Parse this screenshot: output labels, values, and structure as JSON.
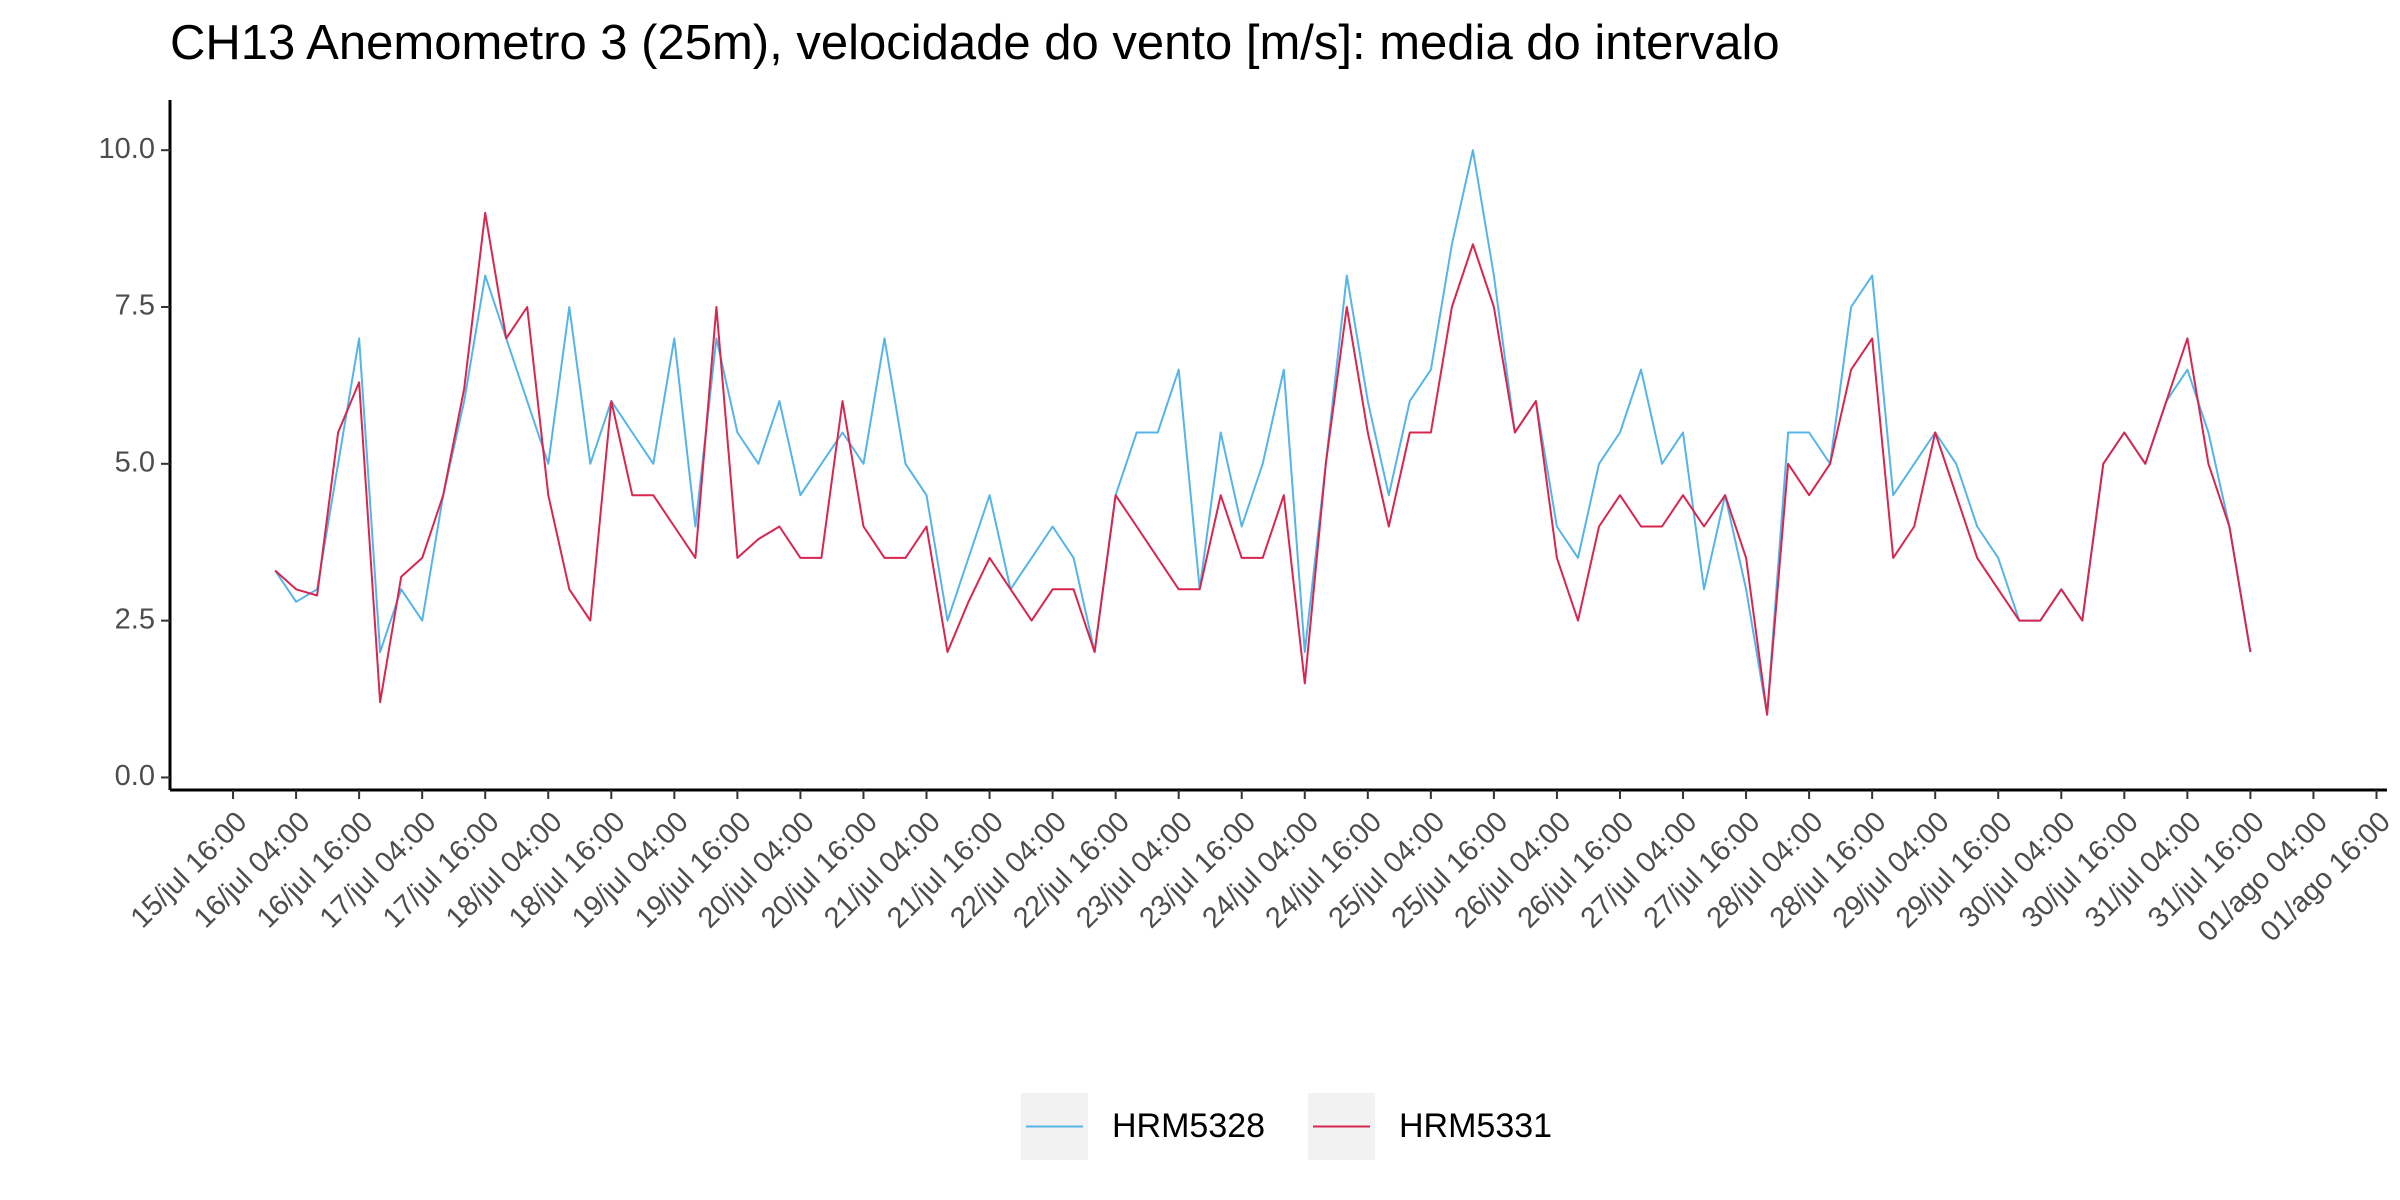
{
  "chart_data": {
    "type": "line",
    "title": "CH13 Anemometro 3 (25m), velocidade do vento [m/s]: media do intervalo",
    "x": [
      "16/jul 00:00",
      "16/jul 04:00",
      "16/jul 08:00",
      "16/jul 12:00",
      "16/jul 16:00",
      "16/jul 20:00",
      "17/jul 00:00",
      "17/jul 04:00",
      "17/jul 08:00",
      "17/jul 12:00",
      "17/jul 16:00",
      "17/jul 20:00",
      "18/jul 00:00",
      "18/jul 04:00",
      "18/jul 08:00",
      "18/jul 12:00",
      "18/jul 16:00",
      "18/jul 20:00",
      "19/jul 00:00",
      "19/jul 04:00",
      "19/jul 08:00",
      "19/jul 12:00",
      "19/jul 16:00",
      "19/jul 20:00",
      "20/jul 00:00",
      "20/jul 04:00",
      "20/jul 08:00",
      "20/jul 12:00",
      "20/jul 16:00",
      "20/jul 20:00",
      "21/jul 00:00",
      "21/jul 04:00",
      "21/jul 08:00",
      "21/jul 12:00",
      "21/jul 16:00",
      "21/jul 20:00",
      "22/jul 00:00",
      "22/jul 04:00",
      "22/jul 08:00",
      "22/jul 12:00",
      "22/jul 16:00",
      "22/jul 20:00",
      "23/jul 00:00",
      "23/jul 04:00",
      "23/jul 08:00",
      "23/jul 12:00",
      "23/jul 16:00",
      "23/jul 20:00",
      "24/jul 00:00",
      "24/jul 04:00",
      "24/jul 08:00",
      "24/jul 12:00",
      "24/jul 16:00",
      "24/jul 20:00",
      "25/jul 00:00",
      "25/jul 04:00",
      "25/jul 08:00",
      "25/jul 12:00",
      "25/jul 16:00",
      "25/jul 20:00",
      "26/jul 00:00",
      "26/jul 04:00",
      "26/jul 08:00",
      "26/jul 12:00",
      "26/jul 16:00",
      "26/jul 20:00",
      "27/jul 00:00",
      "27/jul 04:00",
      "27/jul 08:00",
      "27/jul 12:00",
      "27/jul 16:00",
      "27/jul 20:00",
      "28/jul 00:00",
      "28/jul 04:00",
      "28/jul 08:00",
      "28/jul 12:00",
      "28/jul 16:00",
      "28/jul 20:00",
      "29/jul 00:00",
      "29/jul 04:00",
      "29/jul 08:00",
      "29/jul 12:00",
      "29/jul 16:00",
      "29/jul 20:00",
      "30/jul 00:00",
      "30/jul 04:00",
      "30/jul 08:00",
      "30/jul 12:00",
      "30/jul 16:00",
      "30/jul 20:00",
      "31/jul 00:00",
      "31/jul 04:00",
      "31/jul 08:00",
      "31/jul 12:00",
      "31/jul 16:00"
    ],
    "series": [
      {
        "name": "HRM5328",
        "color": "#56b4e9",
        "values": [
          3.3,
          2.8,
          3.0,
          5.0,
          7.0,
          2.0,
          3.0,
          2.5,
          4.5,
          6.0,
          8.0,
          7.0,
          6.0,
          5.0,
          7.5,
          5.0,
          6.0,
          5.5,
          5.0,
          7.0,
          4.0,
          7.0,
          5.5,
          5.0,
          6.0,
          4.5,
          5.0,
          5.5,
          5.0,
          7.0,
          5.0,
          4.5,
          2.5,
          3.5,
          4.5,
          3.0,
          3.5,
          4.0,
          3.5,
          2.0,
          4.5,
          5.5,
          5.5,
          6.5,
          3.0,
          5.5,
          4.0,
          5.0,
          6.5,
          2.0,
          5.0,
          8.0,
          6.0,
          4.5,
          6.0,
          6.5,
          8.5,
          10.0,
          8.0,
          5.5,
          6.0,
          4.0,
          3.5,
          5.0,
          5.5,
          6.5,
          5.0,
          5.5,
          3.0,
          4.5,
          3.0,
          1.0,
          5.5,
          5.5,
          5.0,
          7.5,
          8.0,
          4.5,
          5.0,
          5.5,
          5.0,
          4.0,
          3.5,
          2.5,
          2.5,
          3.0,
          2.5,
          5.0,
          5.5,
          5.0,
          6.0,
          6.5,
          5.5,
          4.0,
          2.0
        ]
      },
      {
        "name": "HRM5331",
        "color": "#d7264f",
        "values": [
          3.3,
          3.0,
          2.9,
          5.5,
          6.3,
          1.2,
          3.2,
          3.5,
          4.5,
          6.2,
          9.0,
          7.0,
          7.5,
          4.5,
          3.0,
          2.5,
          6.0,
          4.5,
          4.5,
          4.0,
          3.5,
          7.5,
          3.5,
          3.8,
          4.0,
          3.5,
          3.5,
          6.0,
          4.0,
          3.5,
          3.5,
          4.0,
          2.0,
          2.8,
          3.5,
          3.0,
          2.5,
          3.0,
          3.0,
          2.0,
          4.5,
          4.0,
          3.5,
          3.0,
          3.0,
          4.5,
          3.5,
          3.5,
          4.5,
          1.5,
          5.0,
          7.5,
          5.5,
          4.0,
          5.5,
          5.5,
          7.5,
          8.5,
          7.5,
          5.5,
          6.0,
          3.5,
          2.5,
          4.0,
          4.5,
          4.0,
          4.0,
          4.5,
          4.0,
          4.5,
          3.5,
          1.0,
          5.0,
          4.5,
          5.0,
          6.5,
          7.0,
          3.5,
          4.0,
          5.5,
          4.5,
          3.5,
          3.0,
          2.5,
          2.5,
          3.0,
          2.5,
          5.0,
          5.5,
          5.0,
          6.0,
          7.0,
          5.0,
          4.0,
          2.0
        ]
      }
    ],
    "xlim": [
      "15/jul 04:00",
      "01/ago 18:00"
    ],
    "xticks": [
      "15/jul 16:00",
      "16/jul 04:00",
      "16/jul 16:00",
      "17/jul 04:00",
      "17/jul 16:00",
      "18/jul 04:00",
      "18/jul 16:00",
      "19/jul 04:00",
      "19/jul 16:00",
      "20/jul 04:00",
      "20/jul 16:00",
      "21/jul 04:00",
      "21/jul 16:00",
      "22/jul 04:00",
      "22/jul 16:00",
      "23/jul 04:00",
      "23/jul 16:00",
      "24/jul 04:00",
      "24/jul 16:00",
      "25/jul 04:00",
      "25/jul 16:00",
      "26/jul 04:00",
      "26/jul 16:00",
      "27/jul 04:00",
      "27/jul 16:00",
      "28/jul 04:00",
      "28/jul 16:00",
      "29/jul 04:00",
      "29/jul 16:00",
      "30/jul 04:00",
      "30/jul 16:00",
      "31/jul 04:00",
      "31/jul 16:00",
      "01/ago 04:00",
      "01/ago 16:00"
    ],
    "ylim": [
      -0.2,
      10.8
    ],
    "yticks": [
      {
        "value": 0,
        "label": "0.0"
      },
      {
        "value": 2.5,
        "label": "2.5"
      },
      {
        "value": 5,
        "label": "5.0"
      },
      {
        "value": 7.5,
        "label": "7.5"
      },
      {
        "value": 10,
        "label": "10.0"
      }
    ],
    "grid": false,
    "legend": "bottom"
  }
}
